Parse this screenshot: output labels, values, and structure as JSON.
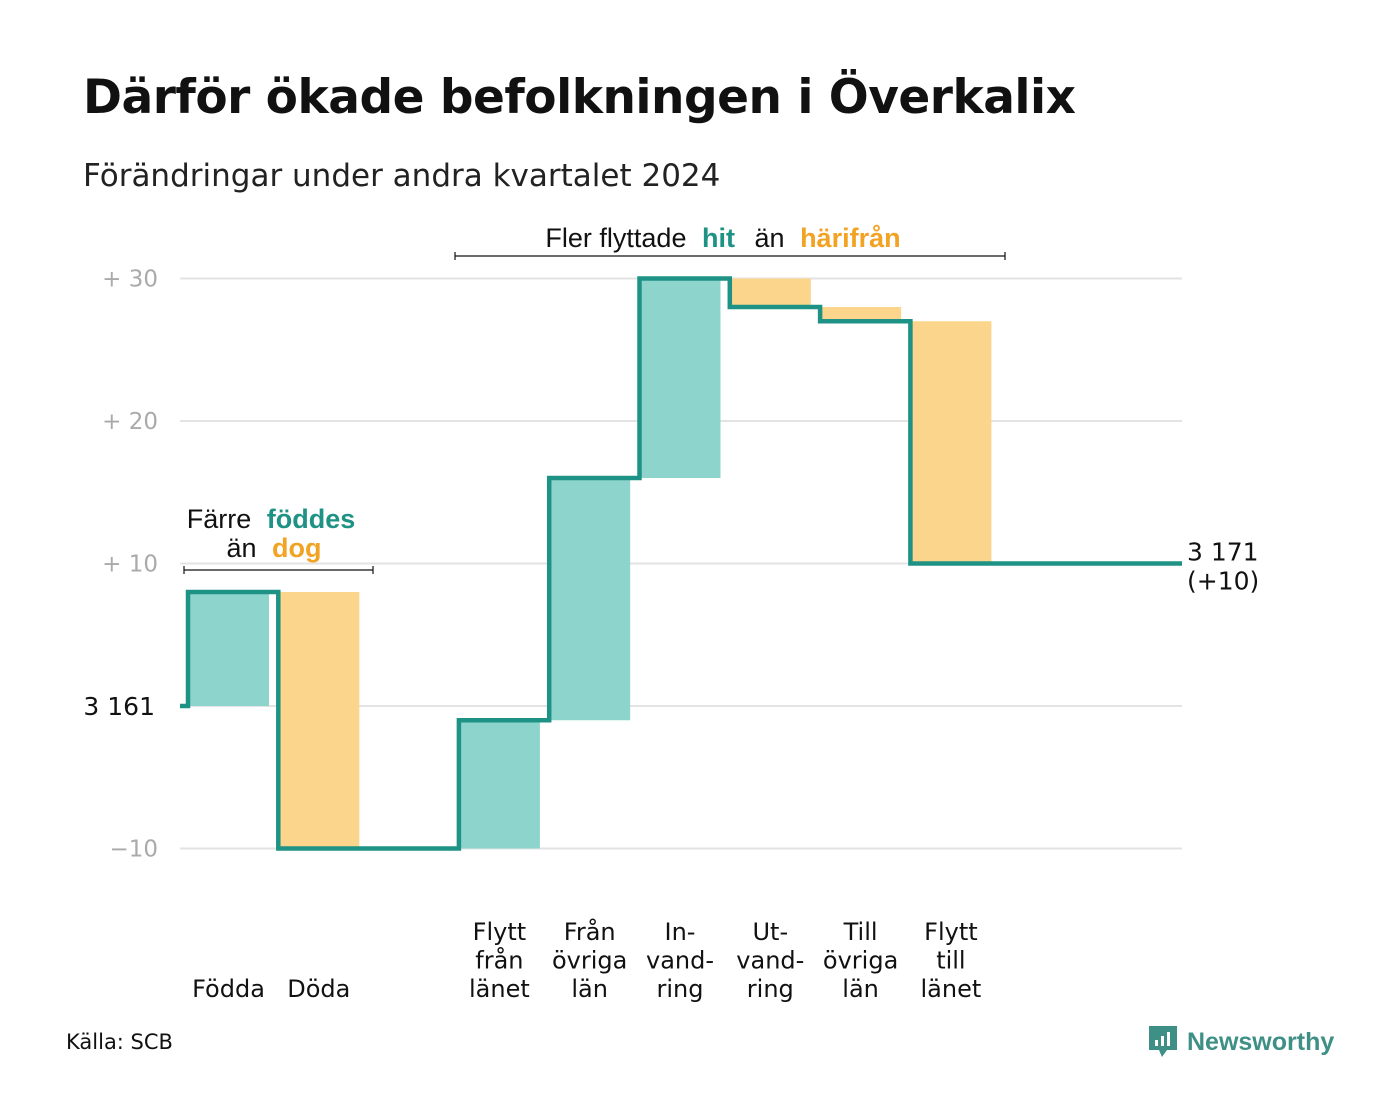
{
  "title": "Därför ökade befolkningen i Överkalix",
  "subtitle": "Förändringar under andra kvartalet 2024",
  "source": "Källa: SCB",
  "brand": "Newsworthy",
  "colors": {
    "positive": "#8dd4cc",
    "negative": "#fad58b",
    "line": "#1e9284",
    "accent_positive": "#1e9284",
    "accent_negative": "#f2a324",
    "grid": "#e3e3e3",
    "tick": "#aaaaaa"
  },
  "annotations": {
    "births": {
      "line1": "Färre",
      "highlight1": "föddes",
      "line2": "än",
      "highlight2": "dog"
    },
    "moves": {
      "text1": "Fler flyttade",
      "highlight1": "hit",
      "text2": "än",
      "highlight2": "härifrån"
    }
  },
  "chart_data": {
    "type": "waterfall",
    "title": "Därför ökade befolkningen i Överkalix",
    "subtitle": "Förändringar under andra kvartalet 2024",
    "start_value": 3161,
    "start_label": "3  161",
    "end_value": 3171,
    "end_label": "3 171",
    "end_change_label": "(+10)",
    "y_ticks": [
      {
        "value": 30,
        "label": "+  30"
      },
      {
        "value": 20,
        "label": "+  20"
      },
      {
        "value": 10,
        "label": "+  10"
      },
      {
        "value": 0,
        "label": ""
      },
      {
        "value": -10,
        "label": "−10"
      }
    ],
    "ylim": [
      -10,
      30
    ],
    "grid": true,
    "steps": [
      {
        "label": [
          "Födda"
        ],
        "change": 8
      },
      {
        "label": [
          "Döda"
        ],
        "change": -18
      },
      {
        "label": [],
        "change": 0
      },
      {
        "label": [
          "Flytt",
          "från",
          "länet"
        ],
        "change": 9
      },
      {
        "label": [
          "Från",
          "övriga",
          "län"
        ],
        "change": 17
      },
      {
        "label": [
          "In-",
          "vand-",
          "ring"
        ],
        "change": 14
      },
      {
        "label": [
          "Ut-",
          "vand-",
          "ring"
        ],
        "change": -2
      },
      {
        "label": [
          "Till",
          "övriga",
          "län"
        ],
        "change": -1
      },
      {
        "label": [
          "Flytt",
          "till",
          "länet"
        ],
        "change": -17
      }
    ]
  }
}
